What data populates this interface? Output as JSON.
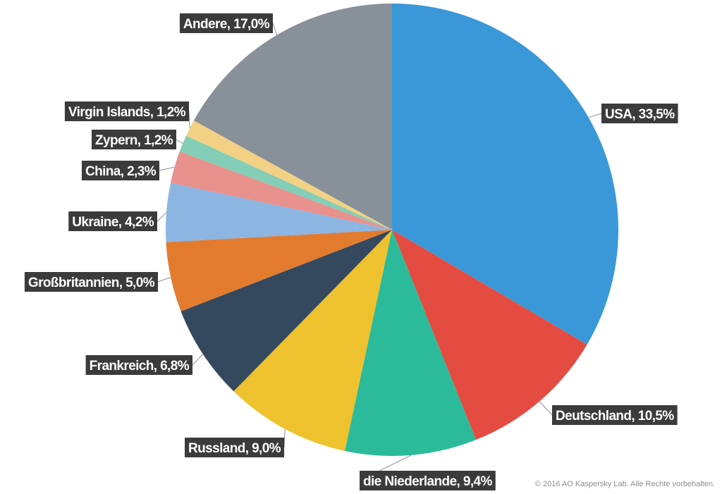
{
  "chart_data": {
    "type": "pie",
    "slices": [
      {
        "label": "USA, 33,5%",
        "value": 33.5,
        "color": "#3a98d8"
      },
      {
        "label": "Deutschland, 10,5%",
        "value": 10.5,
        "color": "#e44c41"
      },
      {
        "label": "die Niederlande, 9,4%",
        "value": 9.4,
        "color": "#2bbb9a"
      },
      {
        "label": "Russland, 9,0%",
        "value": 9.0,
        "color": "#eec22e"
      },
      {
        "label": "Frankreich, 6,8%",
        "value": 6.8,
        "color": "#34495e"
      },
      {
        "label": "Großbritannien, 5,0%",
        "value": 5.0,
        "color": "#e37b2f"
      },
      {
        "label": "Ukraine, 4,2%",
        "value": 4.2,
        "color": "#8cb5e2"
      },
      {
        "label": "China, 2,3%",
        "value": 2.3,
        "color": "#e8918d"
      },
      {
        "label": "Zypern, 1,2%",
        "value": 1.2,
        "color": "#84cdb6"
      },
      {
        "label": "Virgin Islands, 1,2%",
        "value": 1.2,
        "color": "#f2d184"
      },
      {
        "label": "Andere, 17,0%",
        "value": 17.0,
        "color": "#889099"
      }
    ]
  },
  "footer": {
    "copyright": "© 2016 AO Kaspersky Lab. Alle Rechte vorbehalten."
  }
}
